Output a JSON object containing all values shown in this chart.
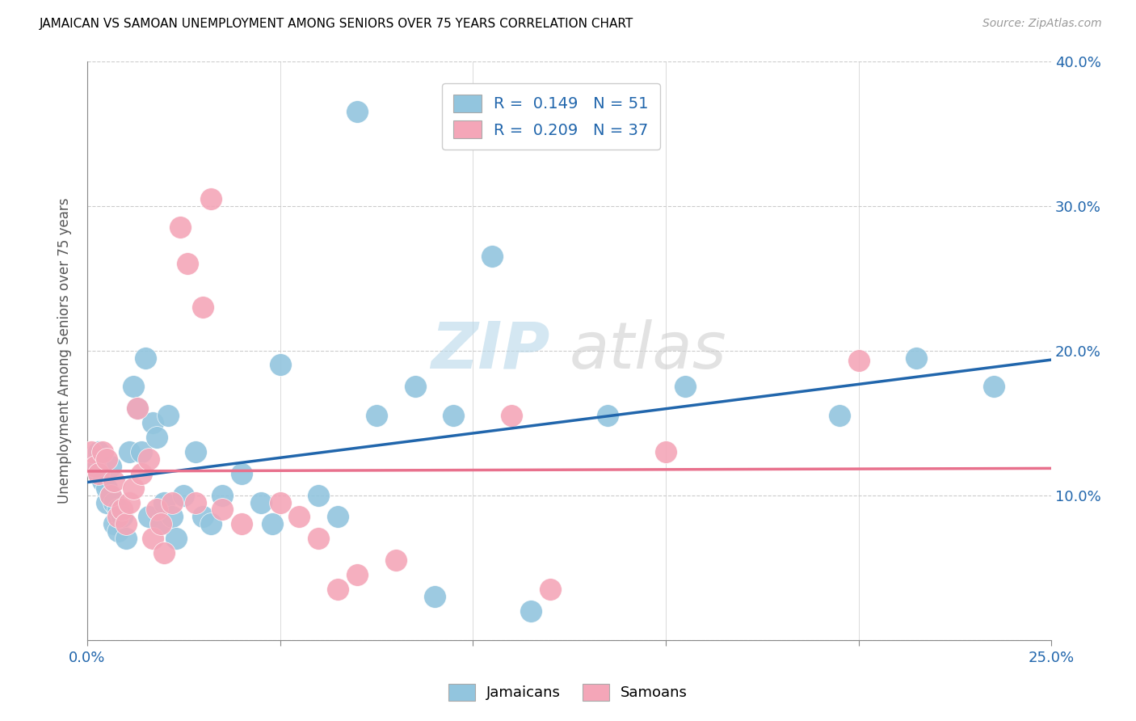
{
  "title": "JAMAICAN VS SAMOAN UNEMPLOYMENT AMONG SENIORS OVER 75 YEARS CORRELATION CHART",
  "source": "Source: ZipAtlas.com",
  "ylabel": "Unemployment Among Seniors over 75 years",
  "xlim": [
    0.0,
    0.25
  ],
  "ylim": [
    0.0,
    0.4
  ],
  "xticks": [
    0.0,
    0.05,
    0.1,
    0.15,
    0.2,
    0.25
  ],
  "xticklabels": [
    "0.0%",
    "",
    "",
    "",
    "",
    "25.0%"
  ],
  "yticks": [
    0.0,
    0.1,
    0.2,
    0.3,
    0.4
  ],
  "right_yticklabels": [
    "",
    "10.0%",
    "20.0%",
    "30.0%",
    "40.0%"
  ],
  "legend_r_jamaican": "0.149",
  "legend_n_jamaican": "51",
  "legend_r_samoan": "0.209",
  "legend_n_samoan": "37",
  "jamaican_color": "#92c5de",
  "samoan_color": "#f4a6b8",
  "jamaican_line_color": "#2166ac",
  "samoan_line_color": "#e8718d",
  "watermark_zip": "ZIP",
  "watermark_atlas": "atlas",
  "jamaican_x": [
    0.001,
    0.002,
    0.003,
    0.003,
    0.004,
    0.005,
    0.005,
    0.006,
    0.006,
    0.007,
    0.007,
    0.008,
    0.008,
    0.009,
    0.01,
    0.011,
    0.012,
    0.013,
    0.014,
    0.015,
    0.016,
    0.017,
    0.018,
    0.019,
    0.02,
    0.021,
    0.022,
    0.023,
    0.025,
    0.028,
    0.03,
    0.032,
    0.035,
    0.04,
    0.045,
    0.048,
    0.05,
    0.06,
    0.065,
    0.07,
    0.075,
    0.085,
    0.09,
    0.095,
    0.105,
    0.115,
    0.135,
    0.155,
    0.195,
    0.215,
    0.235
  ],
  "jamaican_y": [
    0.125,
    0.12,
    0.115,
    0.13,
    0.11,
    0.095,
    0.105,
    0.12,
    0.1,
    0.095,
    0.08,
    0.09,
    0.075,
    0.085,
    0.07,
    0.13,
    0.175,
    0.16,
    0.13,
    0.195,
    0.085,
    0.15,
    0.14,
    0.08,
    0.095,
    0.155,
    0.085,
    0.07,
    0.1,
    0.13,
    0.085,
    0.08,
    0.1,
    0.115,
    0.095,
    0.08,
    0.19,
    0.1,
    0.085,
    0.365,
    0.155,
    0.175,
    0.03,
    0.155,
    0.265,
    0.02,
    0.155,
    0.175,
    0.155,
    0.195,
    0.175
  ],
  "samoan_x": [
    0.001,
    0.002,
    0.003,
    0.004,
    0.005,
    0.006,
    0.007,
    0.008,
    0.009,
    0.01,
    0.011,
    0.012,
    0.013,
    0.014,
    0.016,
    0.017,
    0.018,
    0.019,
    0.02,
    0.022,
    0.024,
    0.026,
    0.028,
    0.03,
    0.032,
    0.035,
    0.04,
    0.05,
    0.055,
    0.06,
    0.065,
    0.07,
    0.08,
    0.11,
    0.12,
    0.15,
    0.2
  ],
  "samoan_y": [
    0.13,
    0.12,
    0.115,
    0.13,
    0.125,
    0.1,
    0.11,
    0.085,
    0.09,
    0.08,
    0.095,
    0.105,
    0.16,
    0.115,
    0.125,
    0.07,
    0.09,
    0.08,
    0.06,
    0.095,
    0.285,
    0.26,
    0.095,
    0.23,
    0.305,
    0.09,
    0.08,
    0.095,
    0.085,
    0.07,
    0.035,
    0.045,
    0.055,
    0.155,
    0.035,
    0.13,
    0.193
  ]
}
